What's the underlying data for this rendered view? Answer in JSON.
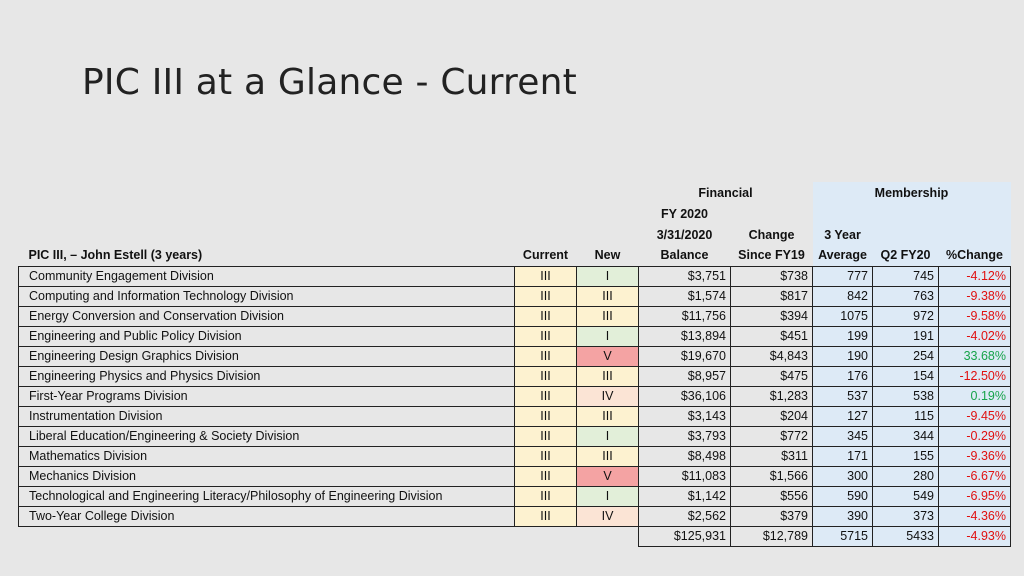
{
  "slide": {
    "title": "PIC III at a Glance - Current"
  },
  "header": {
    "financial_group": "Financial",
    "membership_group": "Membership",
    "fy_line1": "FY 2020",
    "fy_line2": "3/31/2020",
    "fy_line3": "Balance",
    "change_line1": "Change",
    "change_line2": "Since FY19",
    "avg_line1": "3 Year",
    "avg_line2": "Average",
    "name_col": "PIC III, – John Estell (3 years)",
    "current_col": "Current",
    "new_col": "New",
    "q2_col": "Q2 FY20",
    "pct_col": "%Change"
  },
  "rows": [
    {
      "name": "Community Engagement Division",
      "current": "III",
      "new": "I",
      "balance": "$3,751",
      "change": "$738",
      "avg": "777",
      "q2": "745",
      "pct": "-4.12%"
    },
    {
      "name": "Computing and Information Technology Division",
      "current": "III",
      "new": "III",
      "balance": "$1,574",
      "change": "$817",
      "avg": "842",
      "q2": "763",
      "pct": "-9.38%"
    },
    {
      "name": "Energy Conversion and Conservation Division",
      "current": "III",
      "new": "III",
      "balance": "$11,756",
      "change": "$394",
      "avg": "1075",
      "q2": "972",
      "pct": "-9.58%"
    },
    {
      "name": "Engineering and Public Policy Division",
      "current": "III",
      "new": "I",
      "balance": "$13,894",
      "change": "$451",
      "avg": "199",
      "q2": "191",
      "pct": "-4.02%"
    },
    {
      "name": "Engineering Design Graphics Division",
      "current": "III",
      "new": "V",
      "balance": "$19,670",
      "change": "$4,843",
      "avg": "190",
      "q2": "254",
      "pct": "33.68%"
    },
    {
      "name": "Engineering Physics and Physics Division",
      "current": "III",
      "new": "III",
      "balance": "$8,957",
      "change": "$475",
      "avg": "176",
      "q2": "154",
      "pct": "-12.50%"
    },
    {
      "name": "First-Year Programs Division",
      "current": "III",
      "new": "IV",
      "balance": "$36,106",
      "change": "$1,283",
      "avg": "537",
      "q2": "538",
      "pct": "0.19%"
    },
    {
      "name": "Instrumentation Division",
      "current": "III",
      "new": "III",
      "balance": "$3,143",
      "change": "$204",
      "avg": "127",
      "q2": "115",
      "pct": "-9.45%"
    },
    {
      "name": "Liberal Education/Engineering & Society Division",
      "current": "III",
      "new": "I",
      "balance": "$3,793",
      "change": "$772",
      "avg": "345",
      "q2": "344",
      "pct": "-0.29%"
    },
    {
      "name": "Mathematics Division",
      "current": "III",
      "new": "III",
      "balance": "$8,498",
      "change": "$311",
      "avg": "171",
      "q2": "155",
      "pct": "-9.36%"
    },
    {
      "name": "Mechanics Division",
      "current": "III",
      "new": "V",
      "balance": "$11,083",
      "change": "$1,566",
      "avg": "300",
      "q2": "280",
      "pct": "-6.67%"
    },
    {
      "name": "Technological and Engineering Literacy/Philosophy of Engineering Division",
      "current": "III",
      "new": "I",
      "balance": "$1,142",
      "change": "$556",
      "avg": "590",
      "q2": "549",
      "pct": "-6.95%"
    },
    {
      "name": "Two-Year College Division",
      "current": "III",
      "new": "IV",
      "balance": "$2,562",
      "change": "$379",
      "avg": "390",
      "q2": "373",
      "pct": "-4.36%"
    }
  ],
  "totals": {
    "balance": "$125,931",
    "change": "$12,789",
    "avg": "5715",
    "q2": "5433",
    "pct": "-4.93%"
  },
  "colors": {
    "new_I": "#e2efd9",
    "new_III": "#fdf2d0",
    "new_IV": "#fbe4d5",
    "new_V": "#f4a3a3",
    "negative": "#e01010",
    "positive": "#17a34a",
    "membership_bg": "#ddeaf6"
  }
}
